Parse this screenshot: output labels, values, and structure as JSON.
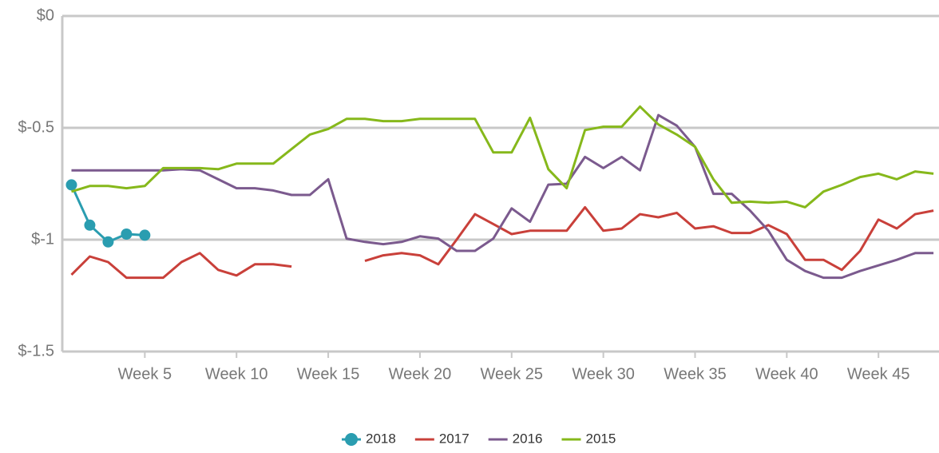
{
  "chart_data": {
    "type": "line",
    "x": [
      1,
      2,
      3,
      4,
      5,
      6,
      7,
      8,
      9,
      10,
      11,
      12,
      13,
      14,
      15,
      16,
      17,
      18,
      19,
      20,
      21,
      22,
      23,
      24,
      25,
      26,
      27,
      28,
      29,
      30,
      31,
      32,
      33,
      34,
      35,
      36,
      37,
      38,
      39,
      40,
      41,
      42,
      43,
      44,
      45,
      46,
      47,
      48
    ],
    "xlim": [
      0.5,
      48.3
    ],
    "xticks": [
      {
        "value": 5,
        "label": "Week 5"
      },
      {
        "value": 10,
        "label": "Week 10"
      },
      {
        "value": 15,
        "label": "Week 15"
      },
      {
        "value": 20,
        "label": "Week 20"
      },
      {
        "value": 25,
        "label": "Week 25"
      },
      {
        "value": 30,
        "label": "Week 30"
      },
      {
        "value": 35,
        "label": "Week 35"
      },
      {
        "value": 40,
        "label": "Week 40"
      },
      {
        "value": 45,
        "label": "Week 45"
      }
    ],
    "ylim": [
      -1.5,
      0
    ],
    "yticks": [
      {
        "value": 0,
        "label": "$0"
      },
      {
        "value": -0.5,
        "label": "$-0.5"
      },
      {
        "value": -1,
        "label": "$-1"
      },
      {
        "value": -1.5,
        "label": "$-1.5"
      }
    ],
    "grid": true,
    "legend": "bottom",
    "series": [
      {
        "name": "2018",
        "color": "#2a9db0",
        "markers": true,
        "values": [
          -0.755,
          -0.935,
          -1.01,
          -0.975,
          -0.98,
          null,
          null,
          null,
          null,
          null,
          null,
          null,
          null,
          null,
          null,
          null,
          null,
          null,
          null,
          null,
          null,
          null,
          null,
          null,
          null,
          null,
          null,
          null,
          null,
          null,
          null,
          null,
          null,
          null,
          null,
          null,
          null,
          null,
          null,
          null,
          null,
          null,
          null,
          null,
          null,
          null,
          null,
          null
        ]
      },
      {
        "name": "2017",
        "color": "#c9403a",
        "values": [
          -1.157,
          -1.075,
          -1.1,
          -1.17,
          -1.17,
          -1.17,
          -1.1,
          -1.06,
          -1.135,
          -1.16,
          -1.11,
          -1.11,
          -1.12,
          null,
          null,
          null,
          -1.095,
          -1.07,
          -1.06,
          -1.07,
          -1.11,
          -1.0,
          -0.886,
          -0.93,
          -0.975,
          -0.96,
          -0.96,
          -0.96,
          -0.855,
          -0.96,
          -0.95,
          -0.886,
          -0.9,
          -0.88,
          -0.95,
          -0.94,
          -0.97,
          -0.97,
          -0.935,
          -0.975,
          -1.09,
          -1.09,
          -1.135,
          -1.05,
          -0.91,
          -0.95,
          -0.886,
          -0.87
        ]
      },
      {
        "name": "2016",
        "color": "#7b5a8e",
        "values": [
          -0.69,
          -0.69,
          -0.69,
          -0.69,
          -0.69,
          -0.69,
          -0.685,
          -0.69,
          -0.73,
          -0.77,
          -0.77,
          -0.78,
          -0.8,
          -0.8,
          -0.73,
          -0.995,
          -1.01,
          -1.02,
          -1.01,
          -0.985,
          -0.995,
          -1.05,
          -1.05,
          -0.995,
          -0.86,
          -0.92,
          -0.754,
          -0.75,
          -0.63,
          -0.68,
          -0.63,
          -0.69,
          -0.443,
          -0.49,
          -0.585,
          -0.795,
          -0.795,
          -0.87,
          -0.96,
          -1.09,
          -1.14,
          -1.17,
          -1.17,
          -1.14,
          -1.115,
          -1.09,
          -1.06,
          -1.06
        ]
      },
      {
        "name": "2015",
        "color": "#86b81b",
        "values": [
          -0.785,
          -0.76,
          -0.76,
          -0.77,
          -0.76,
          -0.68,
          -0.68,
          -0.68,
          -0.685,
          -0.66,
          -0.66,
          -0.66,
          -0.595,
          -0.53,
          -0.505,
          -0.46,
          -0.46,
          -0.47,
          -0.47,
          -0.46,
          -0.46,
          -0.46,
          -0.46,
          -0.61,
          -0.61,
          -0.455,
          -0.685,
          -0.77,
          -0.51,
          -0.495,
          -0.495,
          -0.405,
          -0.485,
          -0.53,
          -0.585,
          -0.73,
          -0.835,
          -0.83,
          -0.835,
          -0.83,
          -0.855,
          -0.785,
          -0.755,
          -0.72,
          -0.705,
          -0.73,
          -0.695,
          -0.705
        ]
      }
    ]
  }
}
